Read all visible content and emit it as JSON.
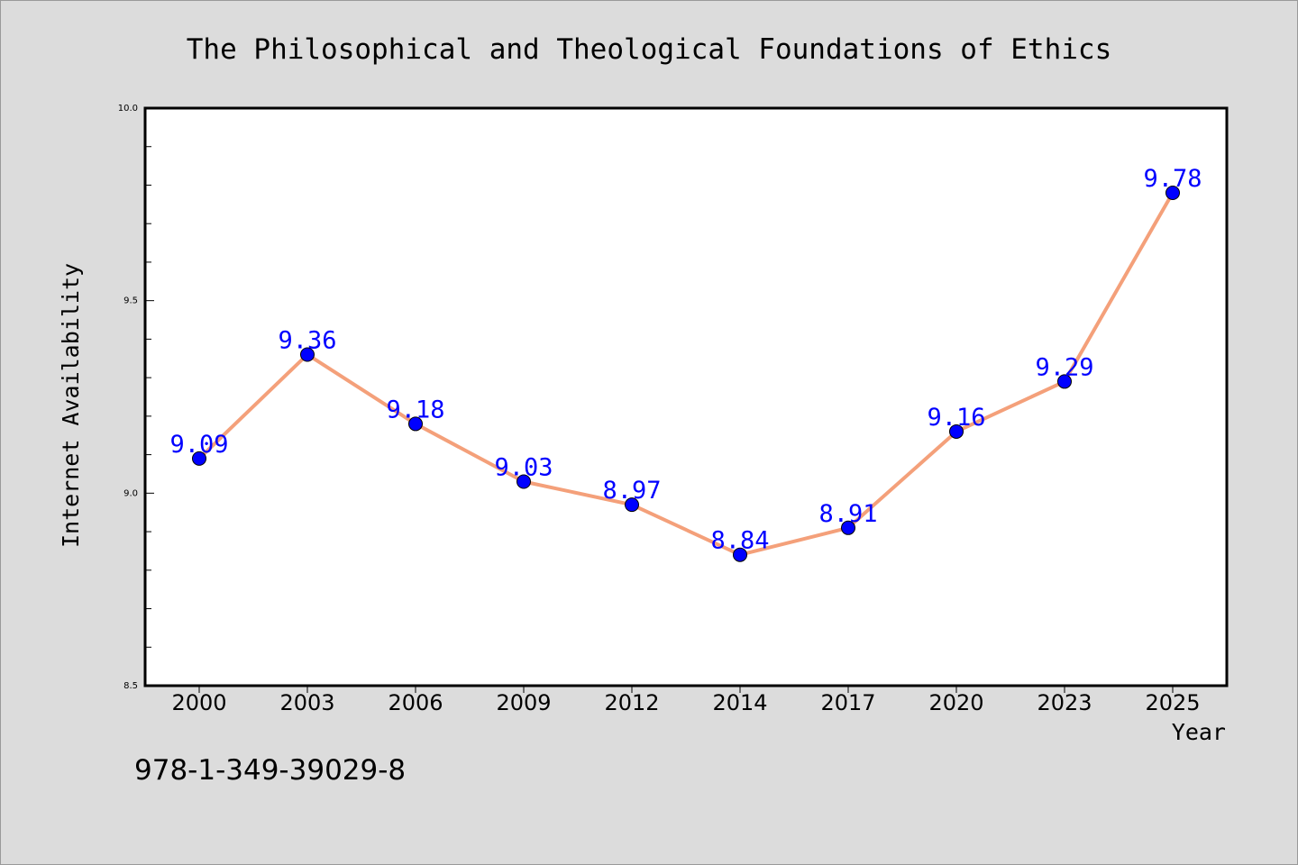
{
  "colors": {
    "background": "#dcdcdc",
    "plot_background": "#ffffff",
    "line": "#f4a07a",
    "marker": "#0000ff",
    "data_label": "#0000ff"
  },
  "isbn": "978-1-349-39029-8",
  "chart_data": {
    "type": "line",
    "title": "The Philosophical and Theological Foundations of Ethics",
    "xlabel": "Year",
    "ylabel": "Internet Availability",
    "categories": [
      "2000",
      "2003",
      "2006",
      "2009",
      "2012",
      "2014",
      "2017",
      "2020",
      "2023",
      "2025"
    ],
    "series": [
      {
        "values": [
          9.09,
          9.36,
          9.18,
          9.03,
          8.97,
          8.84,
          8.91,
          9.16,
          9.29,
          9.78
        ],
        "labels": [
          "9.09",
          "9.36",
          "9.18",
          "9.03",
          "8.97",
          "8.84",
          "8.91",
          "9.16",
          "9.29",
          "9.78"
        ]
      }
    ],
    "ylim": [
      8.5,
      10.0
    ],
    "yticks": [
      "8.5",
      "9.0",
      "9.5",
      "10.0"
    ],
    "y_minor_step": 0.1,
    "grid": false,
    "legend": "none"
  }
}
